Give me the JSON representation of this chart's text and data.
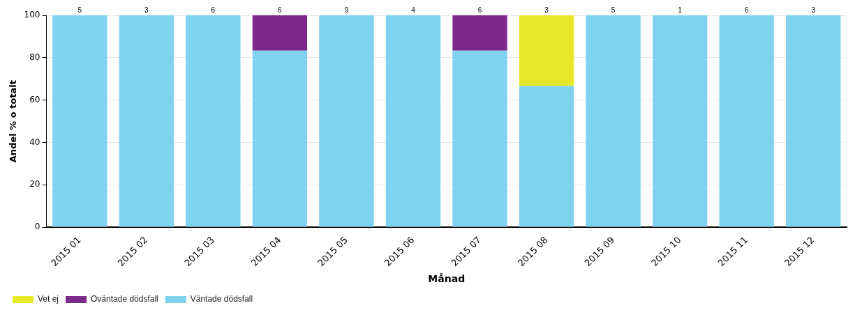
{
  "chart_data": {
    "type": "bar",
    "stacked": true,
    "xlabel": "Månad",
    "ylabel": "Andel % o totalt",
    "categories": [
      "2015 01",
      "2015 02",
      "2015 03",
      "2015 04",
      "2015 05",
      "2015 06",
      "2015 07",
      "2015 08",
      "2015 09",
      "2015 10",
      "2015 11",
      "2015 12"
    ],
    "series": [
      {
        "name": "Väntade dödsfall",
        "color": "#7fd3ee",
        "values": [
          100,
          100,
          100,
          83.3,
          100,
          100,
          83.3,
          66.7,
          100,
          100,
          100,
          100
        ]
      },
      {
        "name": "Oväntade dödsfall",
        "color": "#7b2a8a",
        "values": [
          0,
          0,
          0,
          16.7,
          0,
          0,
          16.7,
          0,
          0,
          0,
          0,
          0
        ]
      },
      {
        "name": "Vet ej",
        "color": "#e8e828",
        "values": [
          0,
          0,
          0,
          0,
          0,
          0,
          0,
          33.3,
          0,
          0,
          0,
          0
        ]
      }
    ],
    "annotations": [
      {
        "text": "5",
        "x": "2015 01",
        "y": 100
      },
      {
        "text": "3",
        "x": "2015 02",
        "y": 100
      },
      {
        "text": "6",
        "x": "2015 03",
        "y": 100
      },
      {
        "text": "6",
        "x": "2015 04",
        "y": 100
      },
      {
        "text": "9",
        "x": "2015 05",
        "y": 100
      },
      {
        "text": "4",
        "x": "2015 06",
        "y": 100
      },
      {
        "text": "6",
        "x": "2015 07",
        "y": 100
      },
      {
        "text": "3",
        "x": "2015 08",
        "y": 100
      },
      {
        "text": "5",
        "x": "2015 09",
        "y": 100
      },
      {
        "text": "1",
        "x": "2015 10",
        "y": 100
      },
      {
        "text": "6",
        "x": "2015 11",
        "y": 100
      },
      {
        "text": "3",
        "x": "2015 12",
        "y": 100
      }
    ],
    "ylim": [
      0,
      100
    ],
    "yticks": [
      0,
      20,
      40,
      60,
      80,
      100
    ],
    "grid": "y",
    "legend": "bottom left"
  }
}
